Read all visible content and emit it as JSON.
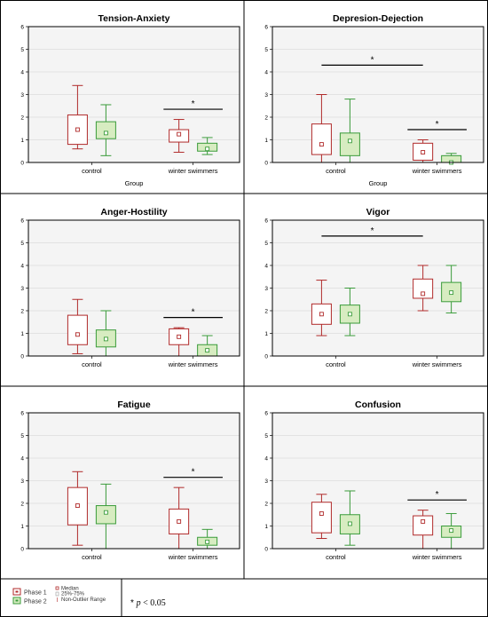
{
  "chart_data": [
    {
      "type": "boxplot",
      "title": "Tension-Anxiety",
      "xlabel": "Group",
      "ylim": [
        0,
        6
      ],
      "yticks": [
        "0",
        "1",
        "2",
        "3",
        "4",
        "5",
        "6"
      ],
      "categories": [
        "control",
        "winter swimmers"
      ],
      "series": [
        {
          "name": "Phase 1",
          "color": "#b02a2a",
          "boxes": [
            {
              "whisker_low": 0.6,
              "q1": 0.8,
              "median": 1.45,
              "q3": 2.1,
              "whisker_high": 3.4
            },
            {
              "whisker_low": 0.45,
              "q1": 0.9,
              "median": 1.25,
              "q3": 1.45,
              "whisker_high": 1.9
            }
          ]
        },
        {
          "name": "Phase 2",
          "color": "#3a9b3a",
          "boxes": [
            {
              "whisker_low": 0.3,
              "q1": 1.05,
              "median": 1.3,
              "q3": 1.8,
              "whisker_high": 2.55
            },
            {
              "whisker_low": 0.35,
              "q1": 0.5,
              "median": 0.6,
              "q3": 0.85,
              "whisker_high": 1.1
            }
          ]
        }
      ],
      "significance": [
        {
          "label": "*",
          "from": 1,
          "to": 1
        }
      ]
    },
    {
      "type": "boxplot",
      "title": "Depresion-Dejection",
      "xlabel": "Group",
      "ylim": [
        0,
        6
      ],
      "yticks": [
        "0",
        "1",
        "2",
        "3",
        "4",
        "5",
        "6"
      ],
      "categories": [
        "control",
        "winter swimmers"
      ],
      "series": [
        {
          "name": "Phase 1",
          "color": "#b02a2a",
          "boxes": [
            {
              "whisker_low": 0.0,
              "q1": 0.35,
              "median": 0.8,
              "q3": 1.7,
              "whisker_high": 3.0
            },
            {
              "whisker_low": 0.0,
              "q1": 0.1,
              "median": 0.45,
              "q3": 0.85,
              "whisker_high": 1.0
            }
          ]
        },
        {
          "name": "Phase 2",
          "color": "#3a9b3a",
          "boxes": [
            {
              "whisker_low": 0.0,
              "q1": 0.3,
              "median": 0.95,
              "q3": 1.3,
              "whisker_high": 2.8
            },
            {
              "whisker_low": 0.0,
              "q1": 0.0,
              "median": 0.0,
              "q3": 0.3,
              "whisker_high": 0.4
            }
          ]
        }
      ],
      "significance": [
        {
          "label": "*",
          "from": 0,
          "to": 1
        },
        {
          "label": "*",
          "from": 1,
          "to": 1
        }
      ]
    },
    {
      "type": "boxplot",
      "title": "Anger-Hostility",
      "xlabel": "",
      "ylim": [
        0,
        6
      ],
      "yticks": [
        "0",
        "1",
        "2",
        "3",
        "4",
        "5",
        "6"
      ],
      "categories": [
        "control",
        "winter swimmers"
      ],
      "series": [
        {
          "name": "Phase 1",
          "color": "#b02a2a",
          "boxes": [
            {
              "whisker_low": 0.1,
              "q1": 0.5,
              "median": 0.95,
              "q3": 1.8,
              "whisker_high": 2.5
            },
            {
              "whisker_low": 0.0,
              "q1": 0.5,
              "median": 0.85,
              "q3": 1.2,
              "whisker_high": 1.25
            }
          ]
        },
        {
          "name": "Phase 2",
          "color": "#3a9b3a",
          "boxes": [
            {
              "whisker_low": 0.0,
              "q1": 0.4,
              "median": 0.75,
              "q3": 1.15,
              "whisker_high": 2.0
            },
            {
              "whisker_low": 0.0,
              "q1": 0.0,
              "median": 0.25,
              "q3": 0.5,
              "whisker_high": 0.9
            }
          ]
        }
      ],
      "significance": [
        {
          "label": "*",
          "from": 1,
          "to": 1
        }
      ]
    },
    {
      "type": "boxplot",
      "title": "Vigor",
      "xlabel": "",
      "ylim": [
        0,
        6
      ],
      "yticks": [
        "0",
        "1",
        "2",
        "3",
        "4",
        "5",
        "6"
      ],
      "categories": [
        "control",
        "winter swimmers"
      ],
      "series": [
        {
          "name": "Phase 1",
          "color": "#b02a2a",
          "boxes": [
            {
              "whisker_low": 0.9,
              "q1": 1.4,
              "median": 1.85,
              "q3": 2.3,
              "whisker_high": 3.35
            },
            {
              "whisker_low": 2.0,
              "q1": 2.55,
              "median": 2.75,
              "q3": 3.4,
              "whisker_high": 4.0
            }
          ]
        },
        {
          "name": "Phase 2",
          "color": "#3a9b3a",
          "boxes": [
            {
              "whisker_low": 0.9,
              "q1": 1.45,
              "median": 1.85,
              "q3": 2.25,
              "whisker_high": 3.0
            },
            {
              "whisker_low": 1.9,
              "q1": 2.4,
              "median": 2.8,
              "q3": 3.25,
              "whisker_high": 4.0
            }
          ]
        }
      ],
      "significance": [
        {
          "label": "*",
          "from": 0,
          "to": 1
        }
      ]
    },
    {
      "type": "boxplot",
      "title": "Fatigue",
      "xlabel": "",
      "ylim": [
        0,
        6
      ],
      "yticks": [
        "0",
        "1",
        "2",
        "3",
        "4",
        "5",
        "6"
      ],
      "categories": [
        "control",
        "winter swimmers"
      ],
      "series": [
        {
          "name": "Phase 1",
          "color": "#b02a2a",
          "boxes": [
            {
              "whisker_low": 0.15,
              "q1": 1.05,
              "median": 1.9,
              "q3": 2.7,
              "whisker_high": 3.4
            },
            {
              "whisker_low": 0.0,
              "q1": 0.65,
              "median": 1.2,
              "q3": 1.75,
              "whisker_high": 2.7
            }
          ]
        },
        {
          "name": "Phase 2",
          "color": "#3a9b3a",
          "boxes": [
            {
              "whisker_low": 0.0,
              "q1": 1.1,
              "median": 1.6,
              "q3": 1.9,
              "whisker_high": 2.85
            },
            {
              "whisker_low": 0.0,
              "q1": 0.15,
              "median": 0.3,
              "q3": 0.5,
              "whisker_high": 0.85
            }
          ]
        }
      ],
      "significance": [
        {
          "label": "*",
          "from": 1,
          "to": 1
        }
      ]
    },
    {
      "type": "boxplot",
      "title": "Confusion",
      "xlabel": "",
      "ylim": [
        0,
        6
      ],
      "yticks": [
        "0",
        "1",
        "2",
        "3",
        "4",
        "5",
        "6"
      ],
      "categories": [
        "control",
        "winter swimmers"
      ],
      "series": [
        {
          "name": "Phase 1",
          "color": "#b02a2a",
          "boxes": [
            {
              "whisker_low": 0.45,
              "q1": 0.7,
              "median": 1.55,
              "q3": 2.05,
              "whisker_high": 2.4
            },
            {
              "whisker_low": 0.0,
              "q1": 0.6,
              "median": 1.2,
              "q3": 1.45,
              "whisker_high": 1.7
            }
          ]
        },
        {
          "name": "Phase 2",
          "color": "#3a9b3a",
          "boxes": [
            {
              "whisker_low": 0.15,
              "q1": 0.65,
              "median": 1.1,
              "q3": 1.5,
              "whisker_high": 2.55
            },
            {
              "whisker_low": 0.0,
              "q1": 0.5,
              "median": 0.8,
              "q3": 1.0,
              "whisker_high": 1.55
            }
          ]
        }
      ],
      "significance": [
        {
          "label": "*",
          "from": 1,
          "to": 1
        }
      ]
    }
  ],
  "legend": {
    "phase1": "Phase 1",
    "phase2": "Phase 2",
    "median": "Median",
    "iqr": "25%-75%",
    "range": "Non-Outlier Range",
    "pvalue_star": "* ",
    "pvalue_p": "p",
    "pvalue_rest": " < 0.05"
  },
  "colors": {
    "phase1": "#b02a2a",
    "phase1_fill": "#ffffff",
    "phase2": "#3a9b3a",
    "phase2_fill": "#d7ecc1",
    "plot_bg": "#f4f4f4"
  }
}
